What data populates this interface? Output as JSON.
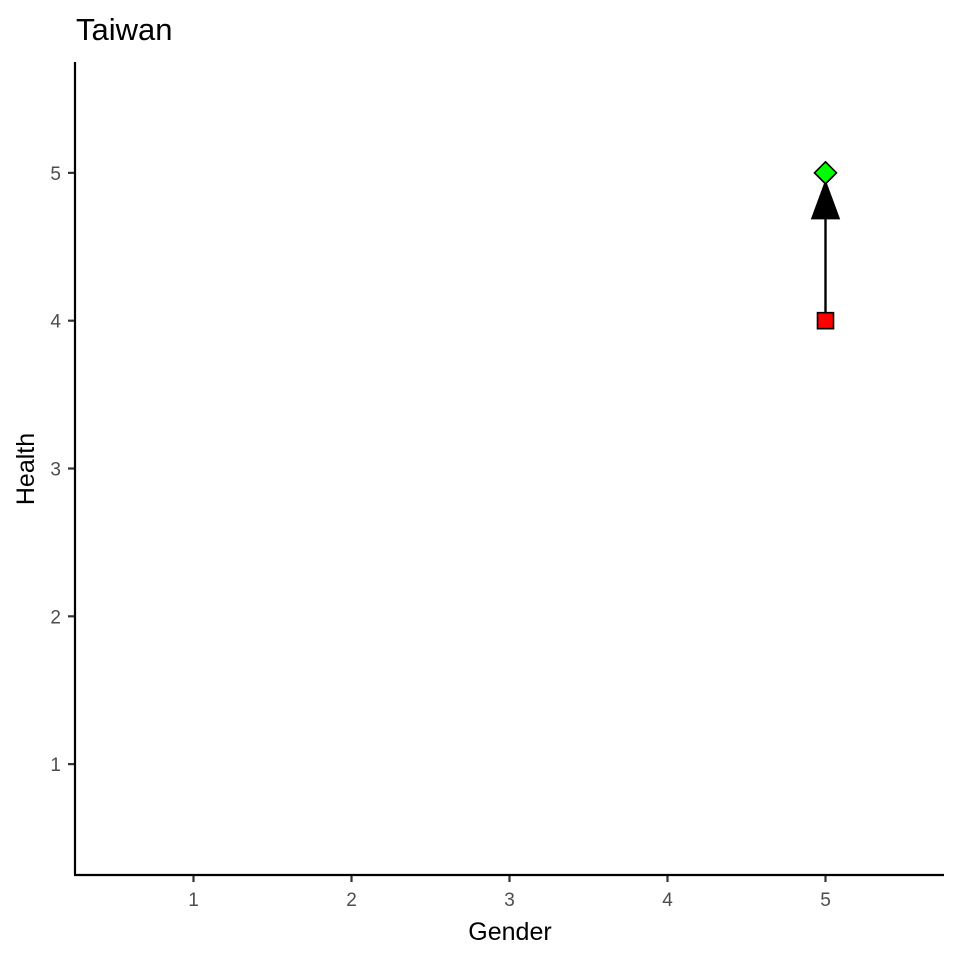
{
  "chart_data": {
    "type": "scatter",
    "title": "Taiwan",
    "xlabel": "Gender",
    "ylabel": "Health",
    "xlim": [
      0.25,
      5.75
    ],
    "ylim": [
      0.25,
      5.75
    ],
    "x_ticks": [
      1,
      2,
      3,
      4,
      5
    ],
    "y_ticks": [
      1,
      2,
      3,
      4,
      5
    ],
    "grid": false,
    "legend": "none",
    "points": [
      {
        "x": 5,
        "y": 4,
        "shape": "square",
        "color": "#ff0000"
      },
      {
        "x": 5,
        "y": 5,
        "shape": "diamond",
        "color": "#00ff00"
      }
    ],
    "arrows": [
      {
        "from": {
          "x": 5,
          "y": 4
        },
        "to": {
          "x": 5,
          "y": 5
        },
        "color": "#000000"
      }
    ]
  }
}
